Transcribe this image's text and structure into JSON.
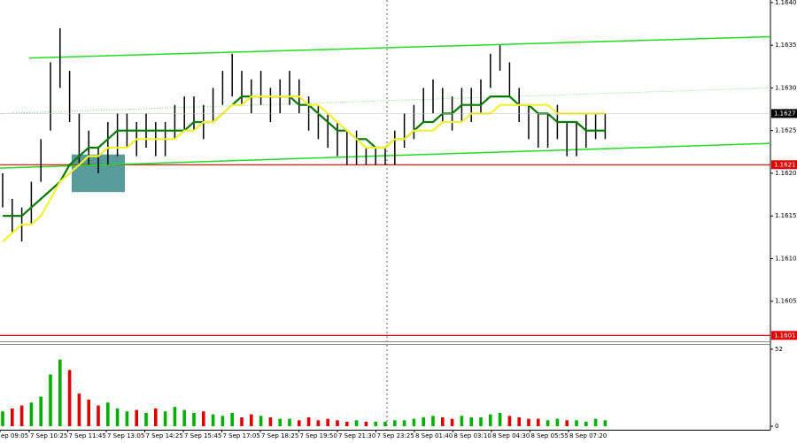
{
  "chart_data": {
    "type": "ohlc",
    "bar_color": "#000000",
    "high": [
      1.162,
      1.1617,
      1.1616,
      1.1619,
      1.1624,
      1.1633,
      1.1637,
      1.1632,
      1.1627,
      1.1625,
      1.1623,
      1.1626,
      1.1627,
      1.1627,
      1.1626,
      1.1627,
      1.1626,
      1.1626,
      1.1628,
      1.1629,
      1.1629,
      1.1628,
      1.163,
      1.1632,
      1.1634,
      1.1632,
      1.1631,
      1.1632,
      1.163,
      1.1631,
      1.1632,
      1.1631,
      1.1629,
      1.1628,
      1.1627,
      1.1626,
      1.1625,
      1.1625,
      1.1623,
      1.1623,
      1.1623,
      1.1625,
      1.1627,
      1.1628,
      1.163,
      1.1631,
      1.163,
      1.1629,
      1.163,
      1.163,
      1.1631,
      1.1634,
      1.1635,
      1.1633,
      1.163,
      1.1628,
      1.1627,
      1.1627,
      1.1628,
      1.1626,
      1.1626,
      1.1627,
      1.1627,
      1.1627
    ],
    "low": [
      1.1616,
      1.1613,
      1.1612,
      1.1614,
      1.1619,
      1.1625,
      1.163,
      1.1626,
      1.1621,
      1.1621,
      1.162,
      1.1621,
      1.1622,
      1.1623,
      1.1622,
      1.1623,
      1.1622,
      1.1622,
      1.1624,
      1.1625,
      1.1625,
      1.1624,
      1.1626,
      1.1628,
      1.1629,
      1.1628,
      1.1627,
      1.1628,
      1.1626,
      1.1627,
      1.1628,
      1.1627,
      1.1625,
      1.1624,
      1.1623,
      1.1622,
      1.1621,
      1.1621,
      1.1621,
      1.1621,
      1.1621,
      1.1621,
      1.1623,
      1.1624,
      1.1626,
      1.1627,
      1.1626,
      1.1625,
      1.1626,
      1.1626,
      1.1627,
      1.163,
      1.1632,
      1.1629,
      1.1626,
      1.1624,
      1.1623,
      1.1623,
      1.1624,
      1.1622,
      1.1622,
      1.1623,
      1.1624,
      1.1624
    ],
    "moving_averages": [
      {
        "color": "#007a00",
        "values": [
          1.1615,
          1.1615,
          1.1615,
          1.1616,
          1.1617,
          1.1618,
          1.1619,
          1.1621,
          1.1622,
          1.1623,
          1.1623,
          1.1624,
          1.1625,
          1.1625,
          1.1625,
          1.1625,
          1.1625,
          1.1625,
          1.1625,
          1.1625,
          1.1626,
          1.1626,
          1.1626,
          1.1627,
          1.1628,
          1.1629,
          1.1629,
          1.1629,
          1.1629,
          1.1629,
          1.1629,
          1.1628,
          1.1628,
          1.1627,
          1.1626,
          1.1625,
          1.1625,
          1.1624,
          1.1624,
          1.1623,
          1.1623,
          1.1624,
          1.1624,
          1.1625,
          1.1626,
          1.1626,
          1.1627,
          1.1627,
          1.1628,
          1.1628,
          1.1628,
          1.1629,
          1.1629,
          1.1629,
          1.1628,
          1.1628,
          1.1627,
          1.1627,
          1.1626,
          1.1626,
          1.1626,
          1.1625,
          1.1625,
          1.1625
        ]
      },
      {
        "color": "#f2f230",
        "values": [
          1.1612,
          1.1613,
          1.1614,
          1.1614,
          1.1615,
          1.1617,
          1.1619,
          1.162,
          1.1621,
          1.1622,
          1.1622,
          1.1623,
          1.1623,
          1.1623,
          1.1624,
          1.1624,
          1.1624,
          1.1624,
          1.1624,
          1.1625,
          1.1625,
          1.1626,
          1.1626,
          1.1627,
          1.1628,
          1.1628,
          1.1629,
          1.1629,
          1.1629,
          1.1629,
          1.1629,
          1.1629,
          1.1628,
          1.1628,
          1.1627,
          1.1626,
          1.1625,
          1.1624,
          1.1623,
          1.1623,
          1.1623,
          1.1624,
          1.1624,
          1.1625,
          1.1625,
          1.1625,
          1.1626,
          1.1626,
          1.1626,
          1.1627,
          1.1627,
          1.1627,
          1.1628,
          1.1628,
          1.1628,
          1.1628,
          1.1628,
          1.1628,
          1.1627,
          1.1627,
          1.1627,
          1.1627,
          1.1627,
          1.1627
        ]
      }
    ],
    "ylim": [
      1.16,
      1.16403
    ],
    "yticks": [
      {
        "value": 1.164,
        "label": "1.1640"
      },
      1.1635,
      {
        "value": 1.163,
        "label": "1.1630"
      },
      1.1625,
      {
        "value": 1.162,
        "label": "1.1620"
      },
      1.1615,
      {
        "value": 1.161,
        "label": "1.1610"
      },
      1.1605
    ],
    "levels": [
      {
        "value": 1.1621,
        "color": "#e00000"
      },
      {
        "value": 1.1601,
        "color": "#e00000"
      }
    ],
    "last_price": 1.1627,
    "channel_lines": [
      {
        "start": 1.16335,
        "end": 1.1636,
        "color": "#22dd22",
        "style": "solid"
      },
      {
        "start": 1.16206,
        "end": 1.16235,
        "color": "#22dd22",
        "style": "solid"
      },
      {
        "start": 1.1627,
        "end": 1.163,
        "color": "#77dd77",
        "style": "dotted"
      }
    ],
    "zone": {
      "high": 1.16222,
      "low": 1.16178,
      "color": "#3a8a8a"
    },
    "volume": {
      "values": [
        10,
        12,
        14,
        16,
        20,
        35,
        45,
        38,
        22,
        18,
        14,
        16,
        12,
        10,
        11,
        9,
        12,
        10,
        13,
        11,
        9,
        10,
        8,
        7,
        9,
        6,
        8,
        7,
        6,
        5,
        5,
        4,
        6,
        4,
        5,
        4,
        3,
        4,
        3,
        3,
        3,
        4,
        4,
        5,
        6,
        7,
        6,
        5,
        7,
        6,
        6,
        8,
        9,
        7,
        6,
        5,
        5,
        4,
        5,
        4,
        4,
        3,
        5,
        4
      ],
      "ylim": [
        0,
        52
      ],
      "yticks": [
        0,
        52
      ],
      "up_color": "#00b000",
      "down_color": "#e00000"
    },
    "x_labels": [
      "ep 09:05",
      "7 Sep 10:25",
      "7 Sep 11:45",
      "7 Sep 13:05",
      "7 Sep 14:25",
      "7 Sep 15:45",
      "7 Sep 17:05",
      "7 Sep 18:25",
      "7 Sep 19:50",
      "7 Sep 21:30",
      "7 Sep 23:25",
      "8 Sep 01:40",
      "8 Sep 03:10",
      "8 Sep 04:30",
      "8 Sep 05:55",
      "8 Sep 07:20"
    ]
  }
}
